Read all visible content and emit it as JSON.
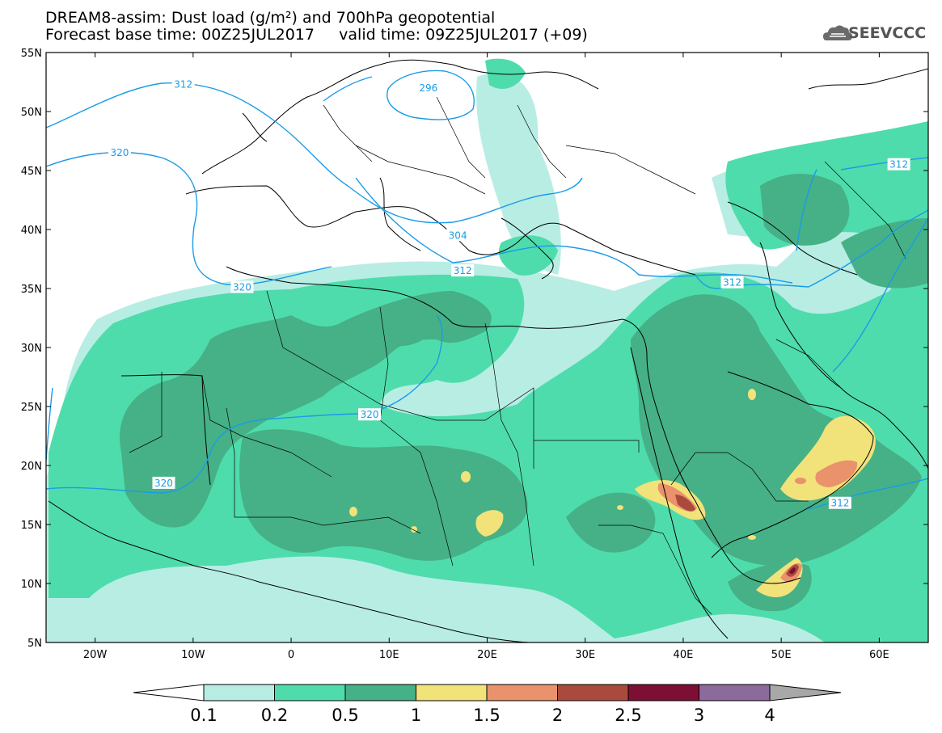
{
  "header": {
    "title_line1": "DREAM8-assim: Dust load (g/m²) and 700hPa geopotential",
    "title_line2": "Forecast base time: 00Z25JUL2017     valid time: 09Z25JUL2017 (+09)",
    "logo_text": "SEEVCCC"
  },
  "map": {
    "lat_labels": [
      "55N",
      "50N",
      "45N",
      "40N",
      "35N",
      "30N",
      "25N",
      "20N",
      "15N",
      "10N",
      "5N"
    ],
    "lon_labels": [
      "20W",
      "10W",
      "0",
      "10E",
      "20E",
      "30E",
      "40E",
      "50E",
      "60E"
    ],
    "extent": {
      "lon": [
        -25,
        65
      ],
      "lat": [
        5,
        55
      ]
    },
    "geopotential_contours": [
      "296",
      "304",
      "312",
      "320"
    ],
    "contour_labels": [
      {
        "text": "296",
        "lon": 14,
        "lat": 52
      },
      {
        "text": "312",
        "lon": -11,
        "lat": 52.3
      },
      {
        "text": "320",
        "lon": -17.5,
        "lat": 46.5
      },
      {
        "text": "304",
        "lon": 17,
        "lat": 39.5
      },
      {
        "text": "312",
        "lon": 17.5,
        "lat": 36.5
      },
      {
        "text": "320",
        "lon": -5,
        "lat": 35.1
      },
      {
        "text": "312",
        "lon": 45,
        "lat": 35.5
      },
      {
        "text": "312",
        "lon": 62,
        "lat": 45.5
      },
      {
        "text": "320",
        "lon": 8,
        "lat": 24.3
      },
      {
        "text": "320",
        "lon": -13,
        "lat": 18.5
      },
      {
        "text": "312",
        "lon": 56,
        "lat": 16.8
      }
    ]
  },
  "colorbar": {
    "ticks": [
      "0.1",
      "0.2",
      "0.5",
      "1",
      "1.5",
      "2",
      "2.5",
      "3",
      "4"
    ],
    "colors": [
      "#b8ede4",
      "#4fdcac",
      "#46b186",
      "#f2e27a",
      "#e9926b",
      "#aa4a3c",
      "#7c0f33",
      "#8b6a9c",
      "#a8a8a8"
    ]
  }
}
